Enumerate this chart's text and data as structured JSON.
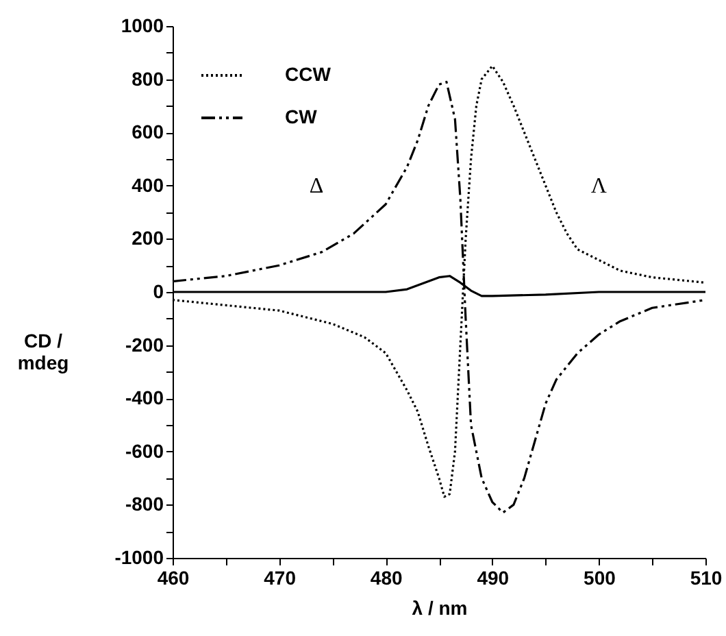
{
  "chart_data": {
    "type": "line",
    "xlabel": "λ / nm",
    "ylabel": "CD / mdeg",
    "xlim": [
      460,
      510
    ],
    "ylim": [
      -1000,
      1000
    ],
    "xticks": [
      460,
      {
        "value": 465,
        "label": null
      },
      470,
      {
        "value": 475,
        "label": null
      },
      480,
      {
        "value": 485,
        "label": null
      },
      490,
      {
        "value": 495,
        "label": null
      },
      500,
      {
        "value": 505,
        "label": null
      },
      510
    ],
    "yticks": [
      -1000,
      {
        "value": -900,
        "label": null
      },
      -800,
      {
        "value": -700,
        "label": null
      },
      -600,
      {
        "value": -500,
        "label": null
      },
      -400,
      {
        "value": -300,
        "label": null
      },
      -200,
      {
        "value": -100,
        "label": null
      },
      0,
      {
        "value": 100,
        "label": null
      },
      200,
      {
        "value": 300,
        "label": null
      },
      400,
      {
        "value": 500,
        "label": null
      },
      600,
      {
        "value": 700,
        "label": null
      },
      800,
      {
        "value": 900,
        "label": null
      },
      1000
    ],
    "grid": false,
    "legend": "top left",
    "marker": "none",
    "series": [
      {
        "name": "CCW",
        "color": "#000000",
        "line_style": "dotted",
        "x": [
          460,
          465,
          470,
          475,
          478,
          480,
          482,
          483,
          484,
          485,
          485.5,
          486,
          486.5,
          487,
          487.5,
          488,
          488.5,
          489,
          490,
          491,
          492,
          493,
          494,
          495,
          496,
          497,
          498,
          500,
          502,
          505,
          510
        ],
        "values": [
          -30,
          -50,
          -70,
          -120,
          -170,
          -230,
          -370,
          -450,
          -580,
          -700,
          -770,
          -760,
          -600,
          -200,
          200,
          500,
          700,
          800,
          850,
          790,
          700,
          600,
          500,
          400,
          300,
          220,
          160,
          120,
          80,
          55,
          35
        ]
      },
      {
        "name": "CW",
        "color": "#000000",
        "line_style": "dashed",
        "x": [
          460,
          465,
          470,
          474,
          477,
          480,
          482,
          483,
          484,
          485,
          485.7,
          486.5,
          487,
          487.5,
          488,
          489,
          490,
          491,
          492,
          493,
          494,
          495,
          496,
          498,
          500,
          502,
          505,
          510
        ],
        "values": [
          40,
          60,
          100,
          150,
          220,
          330,
          470,
          570,
          700,
          780,
          790,
          650,
          350,
          -100,
          -500,
          -700,
          -790,
          -830,
          -800,
          -700,
          -560,
          -420,
          -330,
          -230,
          -160,
          -110,
          -60,
          -30
        ]
      },
      {
        "color": "#000000",
        "line_style": "solid",
        "x": [
          460,
          470,
          480,
          482,
          483,
          484,
          485,
          486,
          487,
          488,
          489,
          490,
          495,
          500,
          510
        ],
        "values": [
          0,
          0,
          0,
          10,
          25,
          40,
          55,
          60,
          35,
          5,
          -15,
          -15,
          -10,
          0,
          0
        ]
      }
    ],
    "annotations": [
      "Δ",
      "Λ"
    ]
  }
}
